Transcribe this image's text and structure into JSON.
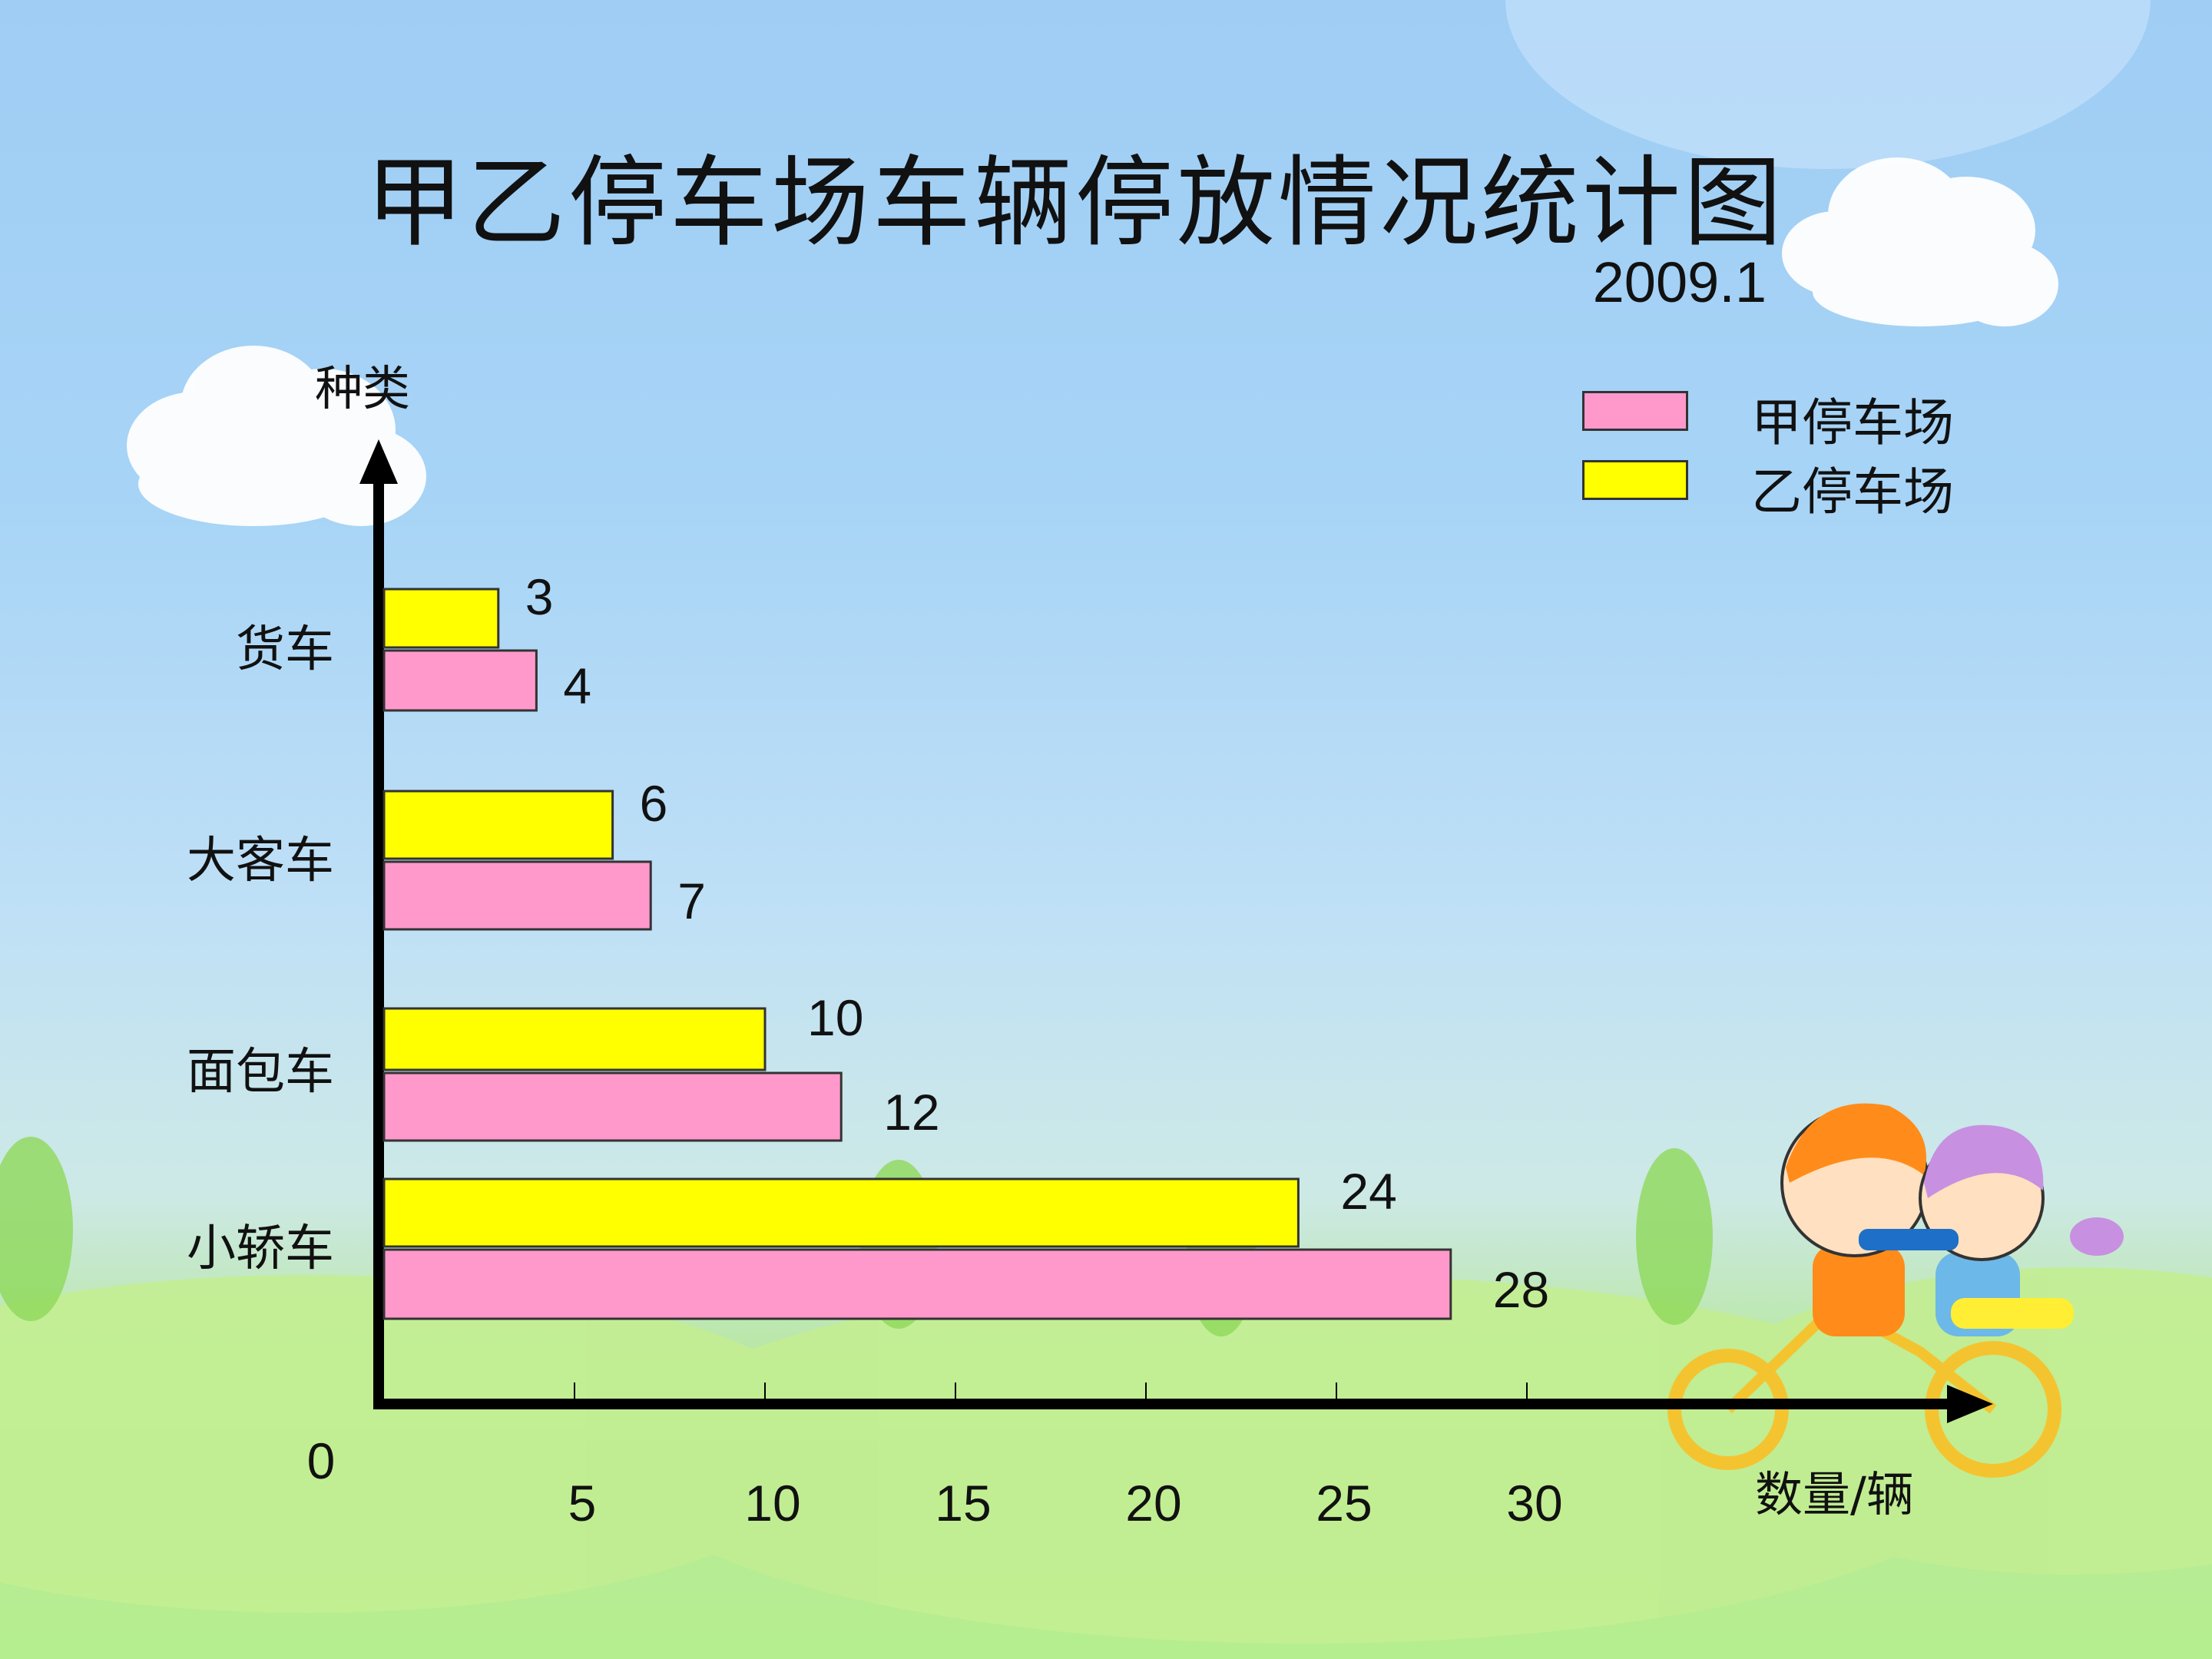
{
  "title": "甲乙停车场车辆停放情况统计图",
  "subtitle": "2009.1",
  "chart_data": {
    "type": "bar",
    "orientation": "horizontal",
    "title": "甲乙停车场车辆停放情况统计图",
    "subtitle": "2009.1",
    "ylabel": "种类",
    "xlabel": "数量/辆",
    "categories": [
      "小轿车",
      "面包车",
      "大客车",
      "货车"
    ],
    "series": [
      {
        "name": "甲停车场",
        "color": "#ff99cc",
        "values": [
          28,
          12,
          7,
          4
        ]
      },
      {
        "name": "乙停车场",
        "color": "#ffff00",
        "values": [
          24,
          10,
          6,
          3
        ]
      }
    ],
    "xlim": [
      0,
      30
    ],
    "xticks": [
      "0",
      "5",
      "10",
      "15",
      "20",
      "25",
      "30"
    ],
    "legend": "top-right",
    "grid": false
  }
}
